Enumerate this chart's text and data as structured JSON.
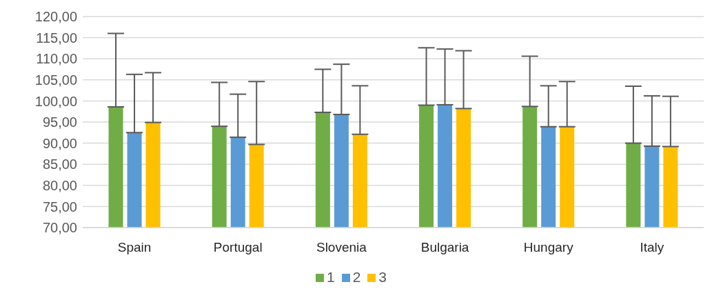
{
  "chart_data": {
    "type": "bar",
    "categories": [
      "Spain",
      "Portugal",
      "Slovenia",
      "Bulgaria",
      "Hungary",
      "Italy"
    ],
    "series": [
      {
        "name": "1",
        "color": "#70ad47",
        "values": [
          98.6,
          94.0,
          97.3,
          99.0,
          98.7,
          90.0
        ],
        "errors": [
          [
            98.6,
            116.0
          ],
          [
            94.0,
            104.4
          ],
          [
            97.3,
            107.5
          ],
          [
            99.0,
            112.6
          ],
          [
            98.7,
            110.6
          ],
          [
            90.0,
            103.5
          ]
        ]
      },
      {
        "name": "2",
        "color": "#5b9bd5",
        "values": [
          92.5,
          91.4,
          96.8,
          99.1,
          93.9,
          89.3
        ],
        "errors": [
          [
            92.5,
            106.3
          ],
          [
            91.4,
            101.6
          ],
          [
            96.8,
            108.7
          ],
          [
            99.1,
            112.3
          ],
          [
            93.9,
            103.6
          ],
          [
            89.3,
            101.2
          ]
        ]
      },
      {
        "name": "3",
        "color": "#ffc000",
        "values": [
          94.9,
          89.7,
          92.1,
          98.2,
          93.9,
          89.2
        ],
        "errors": [
          [
            94.9,
            106.7
          ],
          [
            89.7,
            104.6
          ],
          [
            92.1,
            103.6
          ],
          [
            98.2,
            111.9
          ],
          [
            93.9,
            104.6
          ],
          [
            89.2,
            101.1
          ]
        ]
      }
    ],
    "ylim": [
      70,
      120
    ],
    "yticks": [
      {
        "value": 70,
        "label": "70,00"
      },
      {
        "value": 75,
        "label": "75,00"
      },
      {
        "value": 80,
        "label": "80,00"
      },
      {
        "value": 85,
        "label": "85,00"
      },
      {
        "value": 90,
        "label": "90,00"
      },
      {
        "value": 95,
        "label": "95,00"
      },
      {
        "value": 100,
        "label": "100,00"
      },
      {
        "value": 105,
        "label": "105,00"
      },
      {
        "value": 110,
        "label": "110,00"
      },
      {
        "value": 115,
        "label": "115,00"
      },
      {
        "value": 120,
        "label": "120,00"
      }
    ],
    "grid": "y",
    "legend": "bottom"
  }
}
